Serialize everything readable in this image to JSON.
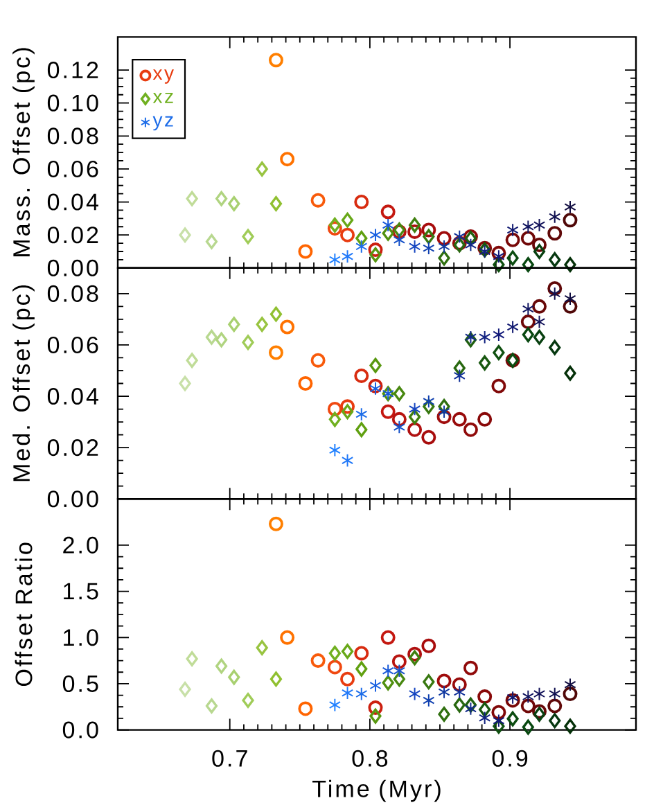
{
  "chart_data": [
    {
      "type": "scatter",
      "ylabel": "Mass. Offset (pc)",
      "xlim": [
        0.62,
        0.99
      ],
      "xticks": [
        0.7,
        0.8,
        0.9
      ],
      "ylim": [
        0,
        0.14
      ],
      "yticks": [
        {
          "value": 0,
          "label": "0.00"
        },
        0.02,
        0.04,
        0.06,
        0.08,
        {
          "value": 0.1,
          "label": "0.10"
        },
        0.12
      ],
      "tick_labels": "y",
      "legend": "top left",
      "series": [
        {
          "name": "xy",
          "color": "#e83c10",
          "marker": "circle",
          "x": [
            0.733,
            0.741,
            0.754,
            0.763,
            0.775,
            0.784,
            0.794,
            0.804,
            0.813,
            0.821,
            0.832,
            0.842,
            0.853,
            0.864,
            0.872,
            0.882,
            0.892,
            0.902,
            0.913,
            0.921,
            0.932,
            0.943
          ],
          "values": [
            0.126,
            0.066,
            0.01,
            0.041,
            0.024,
            0.02,
            0.04,
            0.011,
            0.034,
            0.022,
            0.022,
            0.023,
            0.018,
            0.015,
            0.019,
            0.012,
            0.009,
            0.017,
            0.018,
            0.014,
            0.021,
            0.029
          ],
          "colors": [
            "#ff7f00",
            "#ff7200",
            "#ff6400",
            "#f85a0a",
            "#f04810",
            "#e83c10",
            "#d82c10",
            "#cc2010",
            "#c41810",
            "#b81410",
            "#b01010",
            "#a80c0c",
            "#a00c0c",
            "#980a0a",
            "#900a0a",
            "#880808",
            "#800808",
            "#780808",
            "#700808",
            "#680808",
            "#600808",
            "#500808"
          ]
        },
        {
          "name": "xz",
          "color": "#70b020",
          "marker": "diamond",
          "x": [
            0.668,
            0.673,
            0.687,
            0.694,
            0.703,
            0.713,
            0.723,
            0.733,
            0.775,
            0.784,
            0.794,
            0.804,
            0.813,
            0.821,
            0.832,
            0.842,
            0.853,
            0.864,
            0.872,
            0.882,
            0.892,
            0.902,
            0.913,
            0.921,
            0.932,
            0.943
          ],
          "values": [
            0.02,
            0.042,
            0.016,
            0.042,
            0.039,
            0.019,
            0.06,
            0.039,
            0.026,
            0.029,
            0.018,
            0.008,
            0.021,
            0.023,
            0.026,
            0.019,
            0.006,
            0.014,
            0.018,
            0.011,
            0.002,
            0.006,
            0.002,
            0.01,
            0.005,
            0.002
          ],
          "colors": [
            "#c8e0a8",
            "#c0dc98",
            "#b8d890",
            "#b0d480",
            "#a8d070",
            "#a0cc58",
            "#98c440",
            "#90c030",
            "#70b020",
            "#68a818",
            "#60a010",
            "#589810",
            "#509010",
            "#488810",
            "#408010",
            "#387810",
            "#307010",
            "#286810",
            "#206010",
            "#185810",
            "#105010",
            "#0c4c10",
            "#084810",
            "#084010",
            "#063810",
            "#043008"
          ]
        },
        {
          "name": "yz",
          "color": "#1c6ce8",
          "marker": "cross",
          "x": [
            0.775,
            0.784,
            0.794,
            0.804,
            0.813,
            0.821,
            0.832,
            0.842,
            0.853,
            0.864,
            0.872,
            0.882,
            0.892,
            0.902,
            0.913,
            0.921,
            0.932,
            0.943
          ],
          "values": [
            0.005,
            0.007,
            0.013,
            0.02,
            0.026,
            0.017,
            0.013,
            0.012,
            0.013,
            0.019,
            0.014,
            0.01,
            0.007,
            0.023,
            0.025,
            0.026,
            0.031,
            0.037
          ],
          "colors": [
            "#2080ff",
            "#2078f8",
            "#1c6ce8",
            "#1860e0",
            "#1858d8",
            "#1450c8",
            "#1444c0",
            "#1040b0",
            "#1038a0",
            "#103098",
            "#102888",
            "#102080",
            "#101878",
            "#101870",
            "#101460",
            "#101058",
            "#101050",
            "#100c40"
          ]
        }
      ]
    },
    {
      "type": "scatter",
      "ylabel": "Med. Offset (pc)",
      "xlim": [
        0.62,
        0.99
      ],
      "xticks": [
        0.7,
        0.8,
        0.9
      ],
      "ylim": [
        0,
        0.09
      ],
      "yticks": [
        {
          "value": 0,
          "label": "0.00"
        },
        0.02,
        0.04,
        0.06,
        0.08
      ],
      "tick_labels": "y",
      "series": [
        {
          "marker": "circle",
          "x": [
            0.733,
            0.741,
            0.754,
            0.763,
            0.775,
            0.784,
            0.794,
            0.804,
            0.813,
            0.821,
            0.832,
            0.842,
            0.853,
            0.864,
            0.872,
            0.882,
            0.892,
            0.902,
            0.913,
            0.921,
            0.932,
            0.943
          ],
          "values": [
            0.057,
            0.067,
            0.045,
            0.054,
            0.035,
            0.036,
            0.048,
            0.044,
            0.034,
            0.031,
            0.027,
            0.024,
            0.032,
            0.031,
            0.027,
            0.031,
            0.044,
            0.054,
            0.069,
            0.075,
            0.082,
            0.075
          ],
          "colors": [
            "#ff7f00",
            "#ff7200",
            "#ff6400",
            "#f85a0a",
            "#f04810",
            "#e83c10",
            "#d82c10",
            "#cc2010",
            "#c41810",
            "#b81410",
            "#b01010",
            "#a80c0c",
            "#a00c0c",
            "#980a0a",
            "#900a0a",
            "#880808",
            "#800808",
            "#780808",
            "#700808",
            "#680808",
            "#600808",
            "#500808"
          ]
        },
        {
          "marker": "diamond",
          "x": [
            0.668,
            0.673,
            0.687,
            0.694,
            0.703,
            0.713,
            0.723,
            0.733,
            0.775,
            0.784,
            0.794,
            0.804,
            0.813,
            0.821,
            0.832,
            0.842,
            0.853,
            0.864,
            0.872,
            0.882,
            0.892,
            0.902,
            0.913,
            0.921,
            0.932,
            0.943
          ],
          "values": [
            0.045,
            0.054,
            0.063,
            0.062,
            0.068,
            0.061,
            0.068,
            0.072,
            0.031,
            0.034,
            0.027,
            0.052,
            0.041,
            0.041,
            0.032,
            0.036,
            0.036,
            0.051,
            0.062,
            0.053,
            0.057,
            0.054,
            0.064,
            0.063,
            0.059,
            0.049
          ],
          "colors": [
            "#c8e0a8",
            "#c0dc98",
            "#b8d890",
            "#b0d480",
            "#a8d070",
            "#a0cc58",
            "#98c440",
            "#90c030",
            "#70b020",
            "#68a818",
            "#60a010",
            "#589810",
            "#509010",
            "#488810",
            "#408010",
            "#387810",
            "#307010",
            "#286810",
            "#206010",
            "#185810",
            "#105010",
            "#0c4c10",
            "#084810",
            "#084010",
            "#063810",
            "#043008"
          ]
        },
        {
          "marker": "cross",
          "x": [
            0.775,
            0.784,
            0.794,
            0.804,
            0.813,
            0.821,
            0.832,
            0.842,
            0.853,
            0.864,
            0.872,
            0.882,
            0.892,
            0.902,
            0.913,
            0.921,
            0.932,
            0.943
          ],
          "values": [
            0.019,
            0.015,
            0.033,
            0.043,
            0.041,
            0.028,
            0.035,
            0.038,
            0.034,
            0.048,
            0.063,
            0.063,
            0.064,
            0.067,
            0.074,
            0.069,
            0.08,
            0.078
          ],
          "colors": [
            "#2080ff",
            "#2078f8",
            "#1c6ce8",
            "#1860e0",
            "#1858d8",
            "#1450c8",
            "#1444c0",
            "#1040b0",
            "#1038a0",
            "#103098",
            "#102888",
            "#102080",
            "#101878",
            "#101870",
            "#101460",
            "#101058",
            "#101050",
            "#100c40"
          ]
        }
      ]
    },
    {
      "type": "scatter",
      "ylabel": "Offset Ratio",
      "xlabel": "Time (Myr)",
      "xlim": [
        0.62,
        0.99
      ],
      "xticks": [
        0.7,
        0.8,
        0.9
      ],
      "ylim": [
        0,
        2.5
      ],
      "yticks": [
        {
          "value": 0,
          "label": "0.0"
        },
        0.5,
        {
          "value": 1,
          "label": "1.0"
        },
        1.5,
        {
          "value": 2,
          "label": "2.0"
        }
      ],
      "series": [
        {
          "marker": "circle",
          "x": [
            0.733,
            0.741,
            0.754,
            0.763,
            0.775,
            0.784,
            0.794,
            0.804,
            0.813,
            0.821,
            0.832,
            0.842,
            0.853,
            0.864,
            0.872,
            0.882,
            0.892,
            0.902,
            0.913,
            0.921,
            0.932,
            0.943
          ],
          "values": [
            2.23,
            1.0,
            0.23,
            0.75,
            0.68,
            0.55,
            0.83,
            0.24,
            1.0,
            0.74,
            0.82,
            0.91,
            0.53,
            0.49,
            0.67,
            0.36,
            0.19,
            0.32,
            0.26,
            0.2,
            0.26,
            0.39
          ],
          "colors": [
            "#ff7f00",
            "#ff7200",
            "#ff6400",
            "#f85a0a",
            "#f04810",
            "#e83c10",
            "#d82c10",
            "#cc2010",
            "#c41810",
            "#b81410",
            "#b01010",
            "#a80c0c",
            "#a00c0c",
            "#980a0a",
            "#900a0a",
            "#880808",
            "#800808",
            "#780808",
            "#700808",
            "#680808",
            "#600808",
            "#500808"
          ]
        },
        {
          "marker": "diamond",
          "x": [
            0.668,
            0.673,
            0.687,
            0.694,
            0.703,
            0.713,
            0.723,
            0.733,
            0.775,
            0.784,
            0.794,
            0.804,
            0.813,
            0.821,
            0.832,
            0.842,
            0.853,
            0.864,
            0.872,
            0.882,
            0.892,
            0.902,
            0.913,
            0.921,
            0.932,
            0.943
          ],
          "values": [
            0.44,
            0.77,
            0.26,
            0.69,
            0.57,
            0.32,
            0.89,
            0.55,
            0.83,
            0.85,
            0.66,
            0.15,
            0.51,
            0.55,
            0.78,
            0.52,
            0.17,
            0.27,
            0.27,
            0.22,
            0.04,
            0.12,
            0.03,
            0.17,
            0.1,
            0.04
          ],
          "colors": [
            "#c8e0a8",
            "#c0dc98",
            "#b8d890",
            "#b0d480",
            "#a8d070",
            "#a0cc58",
            "#98c440",
            "#90c030",
            "#70b020",
            "#68a818",
            "#60a010",
            "#589810",
            "#509010",
            "#488810",
            "#408010",
            "#387810",
            "#307010",
            "#286810",
            "#206010",
            "#185810",
            "#105010",
            "#0c4c10",
            "#084810",
            "#084010",
            "#063810",
            "#043008"
          ]
        },
        {
          "marker": "cross",
          "x": [
            0.775,
            0.784,
            0.794,
            0.804,
            0.813,
            0.821,
            0.832,
            0.842,
            0.853,
            0.864,
            0.872,
            0.882,
            0.892,
            0.902,
            0.913,
            0.921,
            0.932,
            0.943
          ],
          "values": [
            0.27,
            0.4,
            0.39,
            0.48,
            0.64,
            0.64,
            0.39,
            0.32,
            0.41,
            0.41,
            0.23,
            0.13,
            0.1,
            0.35,
            0.36,
            0.39,
            0.39,
            0.49
          ],
          "colors": [
            "#2080ff",
            "#2078f8",
            "#1c6ce8",
            "#1860e0",
            "#1858d8",
            "#1450c8",
            "#1444c0",
            "#1040b0",
            "#1038a0",
            "#103098",
            "#102888",
            "#102080",
            "#101878",
            "#101870",
            "#101460",
            "#101058",
            "#101050",
            "#100c40"
          ]
        }
      ]
    }
  ]
}
